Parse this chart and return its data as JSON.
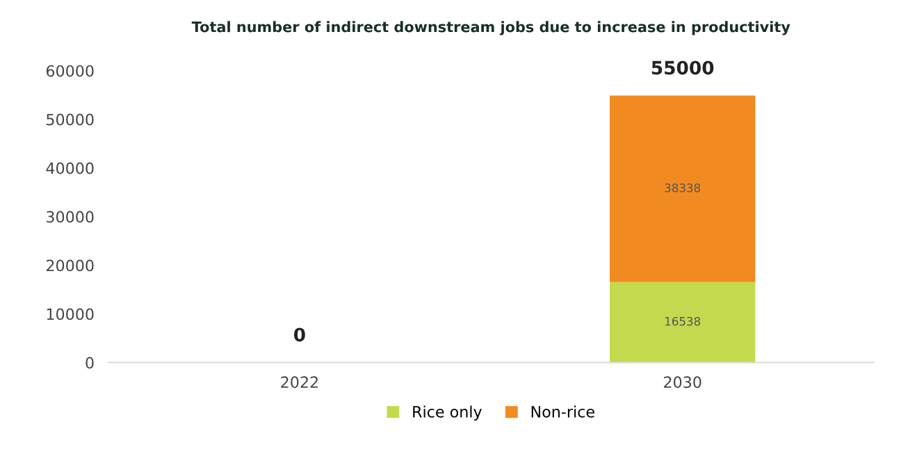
{
  "chart_data": {
    "type": "bar",
    "title": "Total number of indirect downstream jobs due to increase in productivity",
    "categories": [
      "2022",
      "2030"
    ],
    "stacked": true,
    "series": [
      {
        "name": "Rice only",
        "color": "#c4d94e",
        "values": [
          0,
          16538
        ],
        "value_labels": [
          null,
          "16538"
        ]
      },
      {
        "name": "Non-rice",
        "color": "#f28a22",
        "values": [
          0,
          38338
        ],
        "value_labels": [
          null,
          "38338"
        ]
      }
    ],
    "annotations": [
      {
        "text": "0",
        "x": "2022",
        "y": 0
      },
      {
        "text": "55000",
        "x": "2030",
        "y": 54876
      }
    ],
    "ylim": [
      0,
      60000
    ],
    "yticks": [
      0,
      10000,
      20000,
      30000,
      40000,
      50000,
      60000
    ],
    "grid": false,
    "legend": "bottom"
  }
}
